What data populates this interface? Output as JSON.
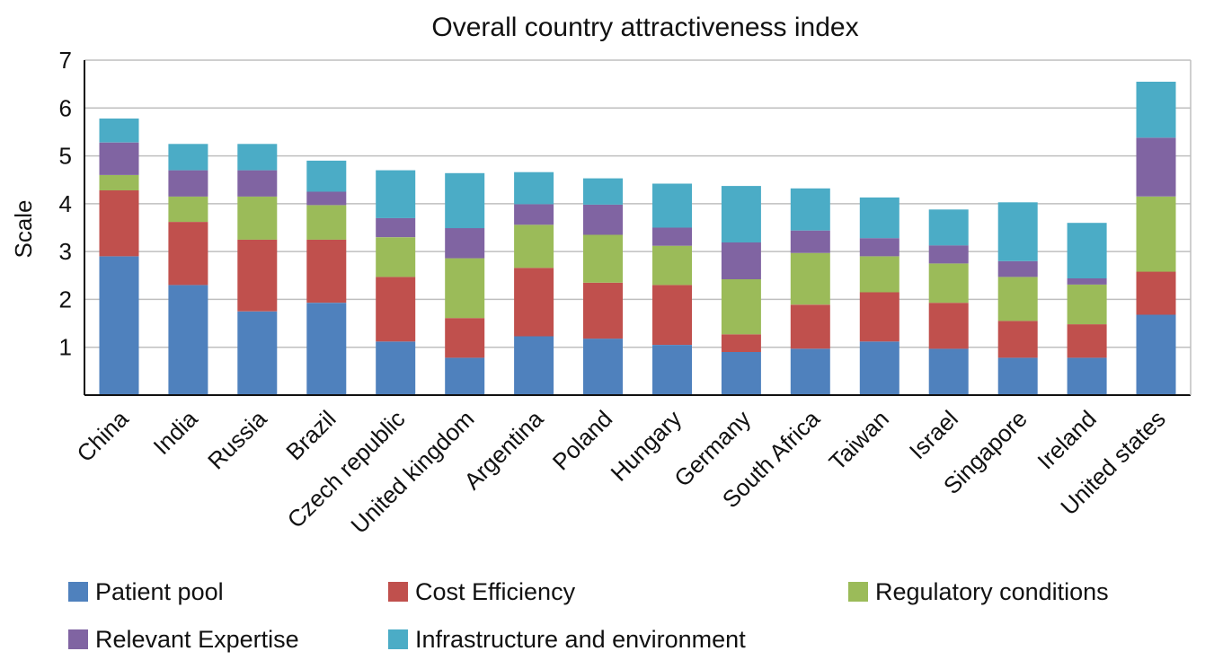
{
  "chart_data": {
    "type": "bar",
    "stacked": true,
    "title": "Overall country attractiveness index",
    "xlabel": "",
    "ylabel": "Scale",
    "ylim": [
      0,
      7
    ],
    "yticks": [
      1,
      2,
      3,
      4,
      5,
      6,
      7
    ],
    "grid": true,
    "legend_position": "bottom",
    "categories": [
      "China",
      "India",
      "Russia",
      "Brazil",
      "Czech republic",
      "United kingdom",
      "Argentina",
      "Poland",
      "Hungary",
      "Germany",
      "South Africa",
      "Taiwan",
      "Israel",
      "Singapore",
      "Ireland",
      "United states"
    ],
    "series": [
      {
        "name": "Patient pool",
        "color": "#4f81bd",
        "values": [
          2.9,
          2.3,
          1.75,
          1.93,
          1.12,
          0.78,
          1.23,
          1.18,
          1.05,
          0.9,
          0.97,
          1.12,
          0.97,
          0.78,
          0.78,
          1.68
        ]
      },
      {
        "name": "Cost Efficiency",
        "color": "#c0504d",
        "values": [
          1.38,
          1.32,
          1.5,
          1.32,
          1.35,
          0.83,
          1.43,
          1.17,
          1.25,
          0.37,
          0.92,
          1.03,
          0.96,
          0.77,
          0.7,
          0.9
        ]
      },
      {
        "name": "Regulatory conditions",
        "color": "#9bbb59",
        "values": [
          0.32,
          0.53,
          0.9,
          0.72,
          0.83,
          1.25,
          0.9,
          1.0,
          0.82,
          1.15,
          1.08,
          0.75,
          0.82,
          0.92,
          0.83,
          1.57
        ]
      },
      {
        "name": "Relevant Expertise",
        "color": "#8064a2",
        "values": [
          0.68,
          0.55,
          0.55,
          0.28,
          0.4,
          0.63,
          0.43,
          0.63,
          0.38,
          0.77,
          0.47,
          0.38,
          0.38,
          0.33,
          0.13,
          1.23
        ]
      },
      {
        "name": "Infrastructure and environment",
        "color": "#4bacc6",
        "values": [
          0.5,
          0.55,
          0.55,
          0.65,
          1.0,
          1.15,
          0.67,
          0.55,
          0.92,
          1.18,
          0.88,
          0.85,
          0.75,
          1.23,
          1.16,
          1.17
        ]
      }
    ]
  }
}
